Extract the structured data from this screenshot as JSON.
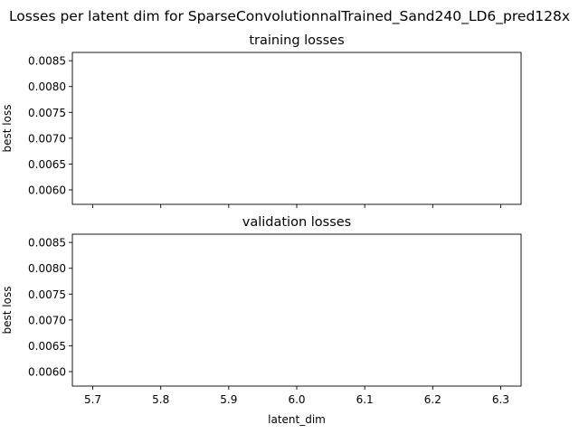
{
  "figure": {
    "suptitle": "Losses per latent dim for SparseConvolutionnalTrained_Sand240_LD6_pred128x"
  },
  "chart_data": [
    {
      "type": "line",
      "title": "training losses",
      "xlabel": "",
      "ylabel": "best loss",
      "xlim": [
        5.67,
        6.33
      ],
      "ylim": [
        0.00572,
        0.00866
      ],
      "xticks": [
        5.7,
        5.8,
        5.9,
        6.0,
        6.1,
        6.2,
        6.3
      ],
      "xticklabels": [],
      "yticks": [
        0.006,
        0.0065,
        0.007,
        0.0075,
        0.008,
        0.0085
      ],
      "yticklabels": [
        "0.0060",
        "0.0065",
        "0.0070",
        "0.0075",
        "0.0080",
        "0.0085"
      ],
      "series": [],
      "grid": false
    },
    {
      "type": "line",
      "title": "validation losses",
      "xlabel": "latent_dim",
      "ylabel": "best loss",
      "xlim": [
        5.67,
        6.33
      ],
      "ylim": [
        0.00572,
        0.00866
      ],
      "xticks": [
        5.7,
        5.8,
        5.9,
        6.0,
        6.1,
        6.2,
        6.3
      ],
      "xticklabels": [
        "5.7",
        "5.8",
        "5.9",
        "6.0",
        "6.1",
        "6.2",
        "6.3"
      ],
      "yticks": [
        0.006,
        0.0065,
        0.007,
        0.0075,
        0.008,
        0.0085
      ],
      "yticklabels": [
        "0.0060",
        "0.0065",
        "0.0070",
        "0.0075",
        "0.0080",
        "0.0085"
      ],
      "series": [],
      "grid": false
    }
  ]
}
